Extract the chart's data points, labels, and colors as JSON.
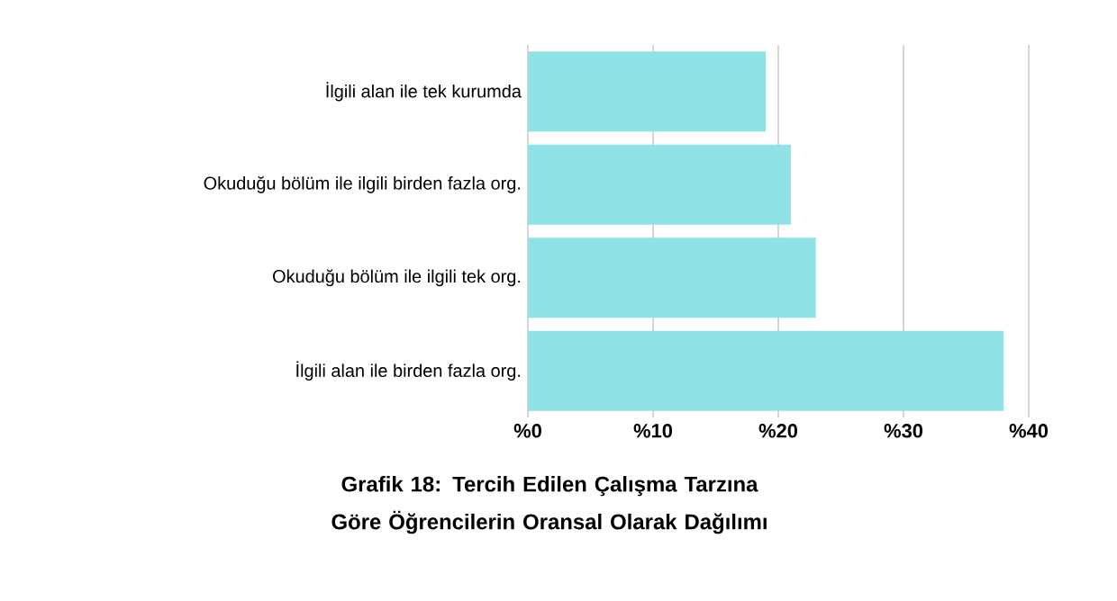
{
  "chart_data": {
    "type": "bar",
    "orientation": "horizontal",
    "title": "Grafik 18: Tercih Edilen Çalışma Tarzına Göre Öğrencilerin Oransal Olarak Dağılımı",
    "categories": [
      "İlgili alan ile tek kurumda",
      "Okuduğu bölüm ile ilgili birden fazla org.",
      "Okuduğu bölüm ile ilgili tek org.",
      "İlgili alan ile birden fazla org."
    ],
    "values": [
      19,
      21,
      23,
      38
    ],
    "color": "#8fe2e6",
    "xlim": [
      0,
      40
    ],
    "xticks": [
      {
        "value": 0,
        "label": "%0"
      },
      {
        "value": 10,
        "label": "%10"
      },
      {
        "value": 20,
        "label": "%20"
      },
      {
        "value": 30,
        "label": "%30"
      },
      {
        "value": 40,
        "label": "%40"
      }
    ],
    "grid": "x"
  }
}
